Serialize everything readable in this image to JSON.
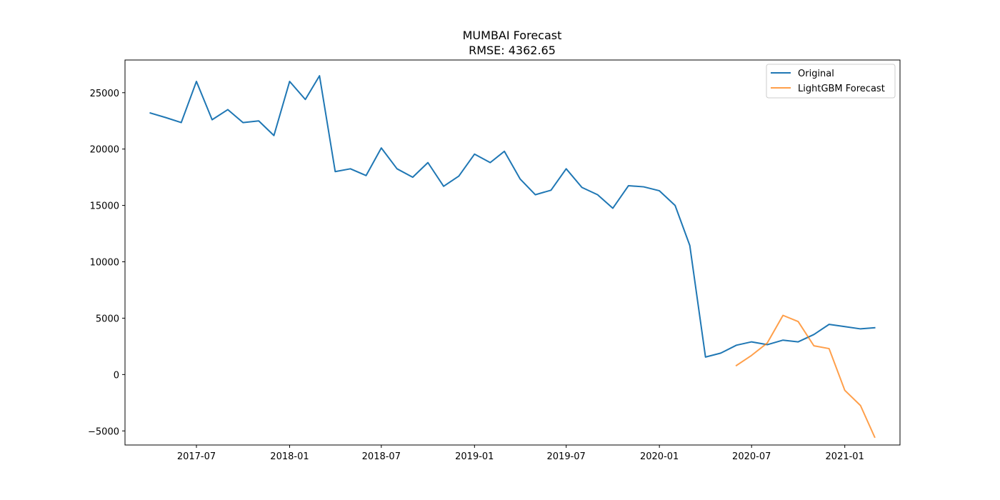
{
  "chart_data": {
    "type": "line",
    "title": "MUMBAI Forecast",
    "subtitle": "RMSE: 4362.65",
    "xlabel": "",
    "ylabel": "",
    "ylim": [
      -6250,
      27900
    ],
    "xlim": [
      "2017-02-10",
      "2021-04-20"
    ],
    "x_ticks": [
      "2017-07",
      "2018-01",
      "2018-07",
      "2019-01",
      "2019-07",
      "2020-01",
      "2020-07",
      "2021-01"
    ],
    "y_ticks": [
      -5000,
      0,
      5000,
      10000,
      15000,
      20000,
      25000
    ],
    "y_tick_labels": [
      "−5000",
      "0",
      "5000",
      "10000",
      "15000",
      "20000",
      "25000"
    ],
    "grid": false,
    "legend_position": "top-right",
    "series": [
      {
        "name": "Original",
        "color": "#1f77b4",
        "x": [
          "2017-04-01",
          "2017-05-01",
          "2017-06-01",
          "2017-07-01",
          "2017-08-01",
          "2017-09-01",
          "2017-10-01",
          "2017-11-01",
          "2017-12-01",
          "2018-01-01",
          "2018-02-01",
          "2018-03-01",
          "2018-04-01",
          "2018-05-01",
          "2018-06-01",
          "2018-07-01",
          "2018-08-01",
          "2018-09-01",
          "2018-10-01",
          "2018-11-01",
          "2018-12-01",
          "2019-01-01",
          "2019-02-01",
          "2019-03-01",
          "2019-04-01",
          "2019-05-01",
          "2019-06-01",
          "2019-07-01",
          "2019-08-01",
          "2019-09-01",
          "2019-10-01",
          "2019-11-01",
          "2019-12-01",
          "2020-01-01",
          "2020-02-01",
          "2020-03-01",
          "2020-04-01",
          "2020-05-01",
          "2020-06-01",
          "2020-07-01",
          "2020-08-01",
          "2020-09-01",
          "2020-10-01",
          "2020-11-01",
          "2020-12-01",
          "2021-01-01",
          "2021-02-01",
          "2021-03-01"
        ],
        "values": [
          23200,
          22800,
          22350,
          26000,
          22600,
          23500,
          22350,
          22500,
          21200,
          26000,
          24400,
          26500,
          18000,
          18250,
          17650,
          20100,
          18250,
          17500,
          18800,
          16700,
          17600,
          19550,
          18800,
          19800,
          17350,
          15950,
          16350,
          18250,
          16600,
          15950,
          14750,
          16750,
          16650,
          16300,
          15000,
          11450,
          1550,
          1900,
          2600,
          2900,
          2650,
          3050,
          2900,
          3550,
          4450,
          4250,
          4050,
          4150
        ]
      },
      {
        "name": "LightGBM Forecast",
        "color": "#ff7f0e",
        "x": [
          "2020-06-01",
          "2020-07-01",
          "2020-08-01",
          "2020-09-01",
          "2020-10-01",
          "2020-11-01",
          "2020-12-01",
          "2021-01-01",
          "2021-02-01",
          "2021-03-01"
        ],
        "values": [
          800,
          1700,
          2800,
          5250,
          4700,
          2550,
          2300,
          -1400,
          -2750,
          -5550
        ]
      }
    ]
  }
}
